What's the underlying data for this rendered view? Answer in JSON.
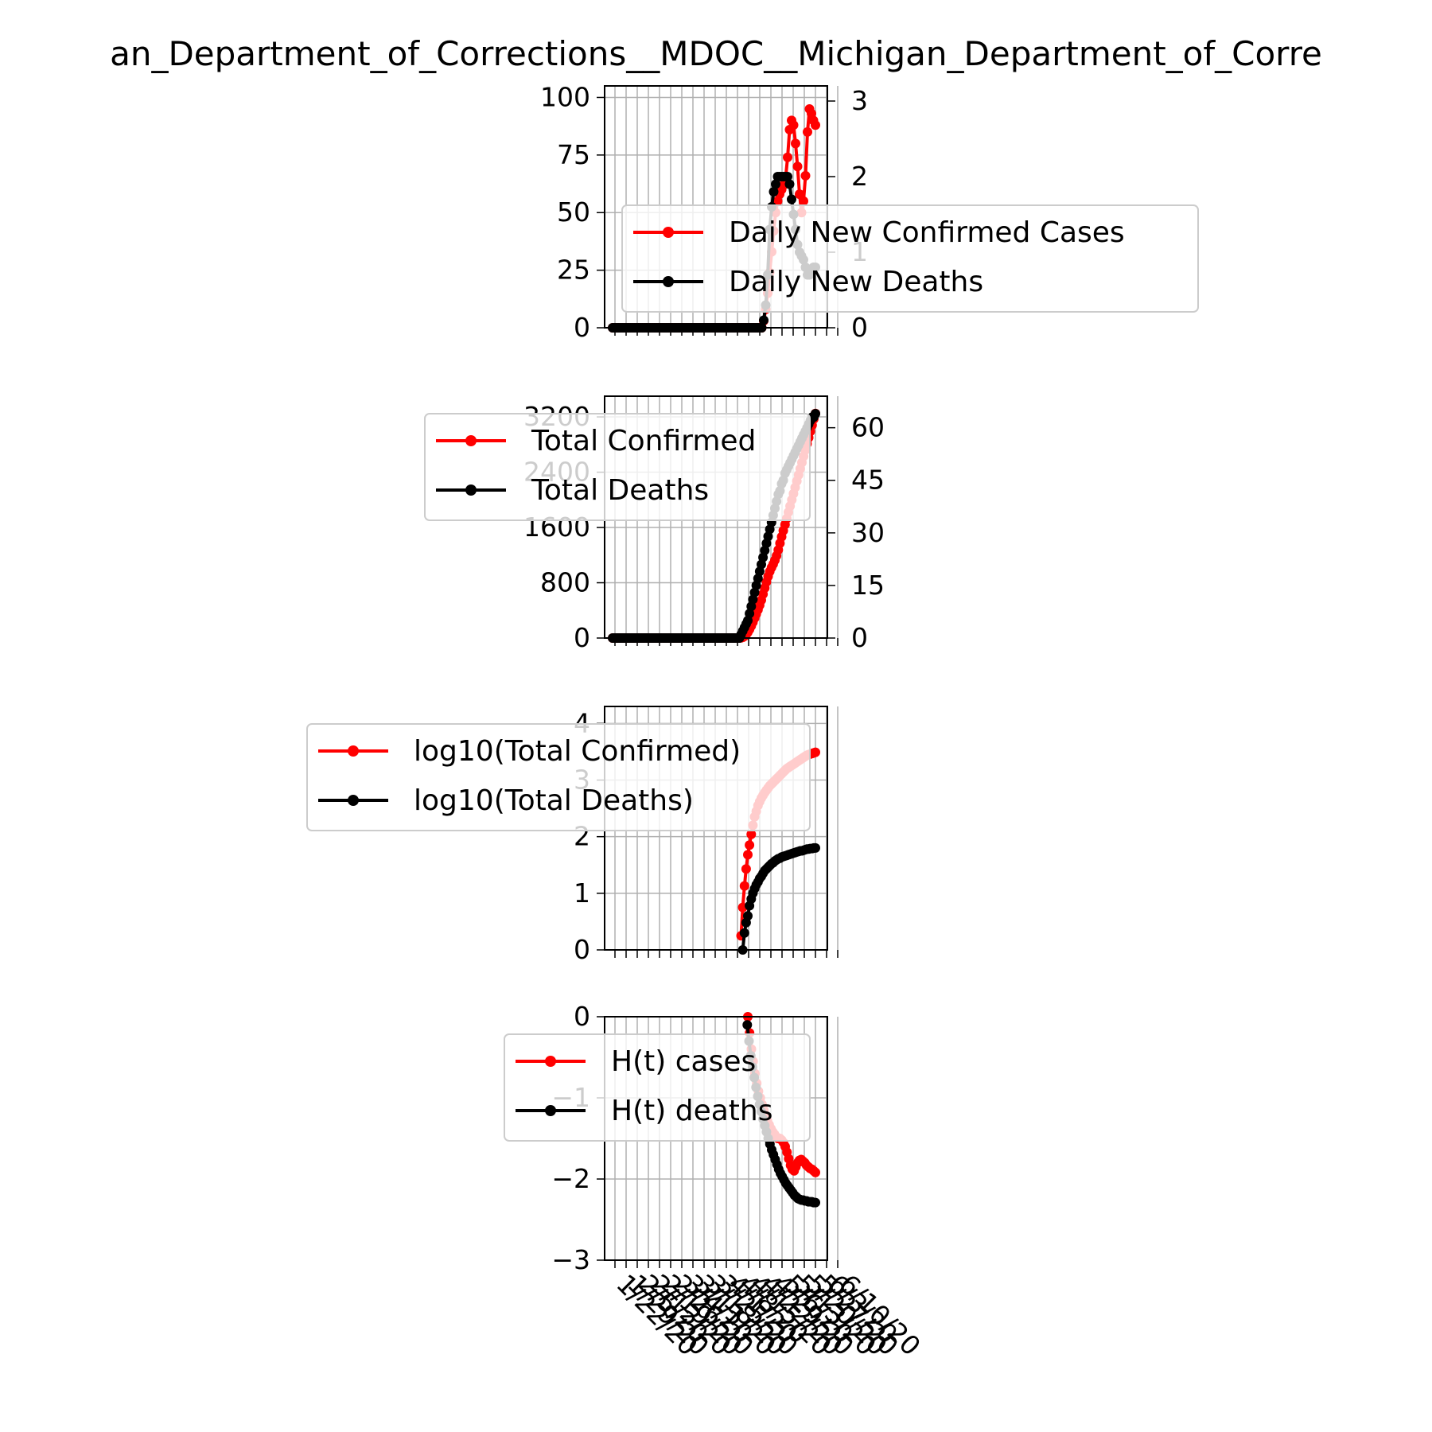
{
  "page_title": "an_Department_of_Corrections__MDOC__Michigan_Department_of_Corre",
  "colors": {
    "cases": "#ff0000",
    "deaths": "#000000",
    "grid": "#b0b0b0",
    "legend_border": "#cccccc"
  },
  "chart_data": [
    {
      "type": "line",
      "title": "an_Department_of_Corrections__MDOC__Michigan_Department_of_Corre",
      "ylim": [
        0,
        105
      ],
      "y_ticks": [
        "0",
        "25",
        "50",
        "75",
        "100"
      ],
      "y2lim": [
        0,
        3.2
      ],
      "y2_ticks": [
        "0",
        "1",
        "2",
        "3"
      ],
      "legend_position": "center-right",
      "grid": true,
      "series": [
        {
          "name": "Daily New Confirmed Cases",
          "axis": "left",
          "color": "#ff0000",
          "values": [
            0,
            0,
            0,
            0,
            0,
            0,
            0,
            0,
            0,
            0,
            0,
            0,
            0,
            0,
            0,
            0,
            0,
            0,
            0,
            0,
            0,
            0,
            0,
            0,
            0,
            0,
            0,
            0,
            0,
            0,
            0,
            0,
            0,
            0,
            0,
            0,
            0,
            0,
            0,
            0,
            0,
            0,
            0,
            0,
            0,
            0,
            0,
            0,
            0,
            0,
            0,
            0,
            0,
            0,
            0,
            0,
            0,
            0,
            0,
            0,
            0,
            0,
            0,
            0,
            0,
            0,
            0,
            0,
            0,
            0,
            0,
            0,
            0,
            0,
            0,
            0,
            3,
            8,
            15,
            24,
            33,
            42,
            50,
            55,
            58,
            60,
            62,
            65,
            74,
            86,
            90,
            88,
            80,
            70,
            58,
            50,
            55,
            66,
            85,
            95,
            93,
            90,
            88
          ]
        },
        {
          "name": "Daily New Deaths",
          "axis": "right",
          "color": "#000000",
          "values": [
            0,
            0,
            0,
            0,
            0,
            0,
            0,
            0,
            0,
            0,
            0,
            0,
            0,
            0,
            0,
            0,
            0,
            0,
            0,
            0,
            0,
            0,
            0,
            0,
            0,
            0,
            0,
            0,
            0,
            0,
            0,
            0,
            0,
            0,
            0,
            0,
            0,
            0,
            0,
            0,
            0,
            0,
            0,
            0,
            0,
            0,
            0,
            0,
            0,
            0,
            0,
            0,
            0,
            0,
            0,
            0,
            0,
            0,
            0,
            0,
            0,
            0,
            0,
            0,
            0,
            0,
            0,
            0,
            0,
            0,
            0,
            0,
            0,
            0,
            0,
            0,
            0.1,
            0.3,
            0.7,
            1.3,
            1.6,
            1.8,
            1.9,
            2.0,
            2.0,
            2.0,
            2.0,
            2.0,
            2.0,
            1.9,
            1.7,
            1.5,
            1.3,
            1.1,
            1.0,
            0.95,
            0.9,
            0.8,
            0.7,
            0.7,
            0.75,
            0.8,
            0.8
          ]
        }
      ]
    },
    {
      "type": "line",
      "ylim": [
        0,
        3500
      ],
      "y_ticks": [
        "0",
        "800",
        "1600",
        "2400",
        "3200"
      ],
      "y2lim": [
        0,
        69
      ],
      "y2_ticks": [
        "0",
        "15",
        "30",
        "45",
        "60"
      ],
      "legend_position": "upper-left",
      "grid": true,
      "series": [
        {
          "name": "Total Confirmed",
          "axis": "left",
          "color": "#ff0000",
          "values": [
            0,
            0,
            0,
            0,
            0,
            0,
            0,
            0,
            0,
            0,
            0,
            0,
            0,
            0,
            0,
            0,
            0,
            0,
            0,
            0,
            0,
            0,
            0,
            0,
            0,
            0,
            0,
            0,
            0,
            0,
            0,
            0,
            0,
            0,
            0,
            0,
            0,
            0,
            0,
            0,
            0,
            0,
            0,
            0,
            0,
            0,
            0,
            0,
            0,
            0,
            0,
            0,
            0,
            0,
            0,
            0,
            0,
            0,
            0,
            0,
            0,
            0,
            0,
            0,
            0,
            0,
            0,
            0,
            0,
            0,
            0,
            0,
            0,
            0,
            0,
            0,
            2,
            10,
            25,
            49,
            82,
            124,
            174,
            229,
            287,
            347,
            409,
            474,
            548,
            634,
            724,
            812,
            892,
            962,
            1020,
            1070,
            1125,
            1191,
            1276,
            1371,
            1464,
            1554,
            1642,
            1730,
            1820,
            1910,
            2000,
            2090,
            2180,
            2270,
            2360,
            2450,
            2540,
            2630,
            2720,
            2810,
            2900,
            2990,
            3080,
            3170,
            3250
          ]
        },
        {
          "name": "Total Deaths",
          "axis": "right",
          "color": "#000000",
          "values": [
            0,
            0,
            0,
            0,
            0,
            0,
            0,
            0,
            0,
            0,
            0,
            0,
            0,
            0,
            0,
            0,
            0,
            0,
            0,
            0,
            0,
            0,
            0,
            0,
            0,
            0,
            0,
            0,
            0,
            0,
            0,
            0,
            0,
            0,
            0,
            0,
            0,
            0,
            0,
            0,
            0,
            0,
            0,
            0,
            0,
            0,
            0,
            0,
            0,
            0,
            0,
            0,
            0,
            0,
            0,
            0,
            0,
            0,
            0,
            0,
            0,
            0,
            0,
            0,
            0,
            0,
            0,
            0,
            0,
            0,
            0,
            0,
            0,
            0,
            0,
            0,
            1,
            2,
            3,
            4,
            5,
            7,
            9,
            11,
            13,
            15,
            17,
            19,
            21,
            23,
            25,
            27,
            29,
            31,
            33,
            35,
            37,
            39,
            41,
            42,
            44,
            45,
            47,
            48,
            49,
            50,
            51,
            52,
            53,
            54,
            55,
            56,
            57,
            58,
            59,
            60,
            61,
            62,
            63,
            63,
            64
          ]
        }
      ]
    },
    {
      "type": "line",
      "ylim": [
        0,
        4.3
      ],
      "y_ticks": [
        "0",
        "1",
        "2",
        "3",
        "4"
      ],
      "legend_position": "upper-left",
      "grid": true,
      "series": [
        {
          "name": "log10(Total Confirmed)",
          "axis": "left",
          "color": "#ff0000",
          "values": [
            null,
            null,
            null,
            null,
            null,
            null,
            null,
            null,
            null,
            null,
            null,
            null,
            null,
            null,
            null,
            null,
            null,
            null,
            null,
            null,
            null,
            null,
            null,
            null,
            null,
            null,
            null,
            null,
            null,
            null,
            null,
            null,
            null,
            null,
            null,
            null,
            null,
            null,
            null,
            null,
            null,
            null,
            null,
            null,
            null,
            null,
            null,
            null,
            null,
            null,
            null,
            null,
            null,
            null,
            null,
            null,
            null,
            null,
            null,
            null,
            null,
            null,
            null,
            null,
            null,
            null,
            null,
            null,
            null,
            null,
            null,
            null,
            null,
            null,
            null,
            null,
            0.25,
            0.75,
            1.13,
            1.43,
            1.68,
            1.85,
            2.04,
            2.2,
            2.35,
            2.45,
            2.55,
            2.62,
            2.68,
            2.73,
            2.78,
            2.82,
            2.86,
            2.9,
            2.93,
            2.96,
            2.99,
            3.02,
            3.05,
            3.08,
            3.11,
            3.14,
            3.17,
            3.2,
            3.22,
            3.24,
            3.26,
            3.28,
            3.3,
            3.32,
            3.34,
            3.36,
            3.38,
            3.4,
            3.42,
            3.44,
            3.45,
            3.46,
            3.47,
            3.48,
            3.49
          ]
        },
        {
          "name": "log10(Total Deaths)",
          "axis": "left",
          "color": "#000000",
          "values": [
            null,
            null,
            null,
            null,
            null,
            null,
            null,
            null,
            null,
            null,
            null,
            null,
            null,
            null,
            null,
            null,
            null,
            null,
            null,
            null,
            null,
            null,
            null,
            null,
            null,
            null,
            null,
            null,
            null,
            null,
            null,
            null,
            null,
            null,
            null,
            null,
            null,
            null,
            null,
            null,
            null,
            null,
            null,
            null,
            null,
            null,
            null,
            null,
            null,
            null,
            null,
            null,
            null,
            null,
            null,
            null,
            null,
            null,
            null,
            null,
            null,
            null,
            null,
            null,
            null,
            null,
            null,
            null,
            null,
            null,
            null,
            null,
            null,
            null,
            null,
            null,
            null,
            0.0,
            0.3,
            0.48,
            0.6,
            0.78,
            0.9,
            1.0,
            1.08,
            1.15,
            1.2,
            1.26,
            1.3,
            1.35,
            1.4,
            1.43,
            1.46,
            1.49,
            1.52,
            1.54,
            1.57,
            1.59,
            1.61,
            1.62,
            1.64,
            1.65,
            1.66,
            1.67,
            1.68,
            1.69,
            1.7,
            1.71,
            1.72,
            1.73,
            1.74,
            1.75,
            1.75,
            1.76,
            1.77,
            1.78,
            1.78,
            1.79,
            1.79,
            1.8,
            1.8
          ]
        }
      ]
    },
    {
      "type": "line",
      "ylim": [
        -3,
        0
      ],
      "y_ticks": [
        "−3",
        "−2",
        "−1",
        "0"
      ],
      "legend_position": "upper-left",
      "grid": true,
      "x_tick_labels": [
        "1/22/20",
        "1/29/20",
        "2/5/20",
        "2/12/20",
        "2/19/20",
        "2/26/20",
        "3/4/20",
        "3/11/20",
        "3/18/20",
        "3/25/20",
        "4/1/20",
        "4/8/20",
        "4/15/20",
        "4/22/20",
        "4/29/20",
        "5/6/20",
        "5/13/20",
        "5/20/20",
        "5/27/20",
        "6/3/20",
        "6/10/20"
      ],
      "series": [
        {
          "name": "H(t) cases",
          "axis": "left",
          "color": "#ff0000",
          "values": [
            null,
            null,
            null,
            null,
            null,
            null,
            null,
            null,
            null,
            null,
            null,
            null,
            null,
            null,
            null,
            null,
            null,
            null,
            null,
            null,
            null,
            null,
            null,
            null,
            null,
            null,
            null,
            null,
            null,
            null,
            null,
            null,
            null,
            null,
            null,
            null,
            null,
            null,
            null,
            null,
            null,
            null,
            null,
            null,
            null,
            null,
            null,
            null,
            null,
            null,
            null,
            null,
            null,
            null,
            null,
            null,
            null,
            null,
            null,
            null,
            null,
            null,
            null,
            null,
            null,
            null,
            null,
            null,
            null,
            null,
            null,
            null,
            null,
            null,
            null,
            null,
            0.0,
            -0.2,
            -0.4,
            -0.55,
            -0.7,
            -0.82,
            -0.92,
            -1.0,
            -1.08,
            -1.15,
            -1.22,
            -1.28,
            -1.33,
            -1.38,
            -1.42,
            -1.45,
            -1.48,
            -1.5,
            -1.5,
            -1.52,
            -1.55,
            -1.6,
            -1.67,
            -1.75,
            -1.83,
            -1.88,
            -1.9,
            -1.85,
            -1.8,
            -1.77,
            -1.76,
            -1.78,
            -1.8,
            -1.83,
            -1.85,
            -1.87,
            -1.88,
            -1.9,
            -1.92
          ]
        },
        {
          "name": "H(t) deaths",
          "axis": "left",
          "color": "#000000",
          "values": [
            null,
            null,
            null,
            null,
            null,
            null,
            null,
            null,
            null,
            null,
            null,
            null,
            null,
            null,
            null,
            null,
            null,
            null,
            null,
            null,
            null,
            null,
            null,
            null,
            null,
            null,
            null,
            null,
            null,
            null,
            null,
            null,
            null,
            null,
            null,
            null,
            null,
            null,
            null,
            null,
            null,
            null,
            null,
            null,
            null,
            null,
            null,
            null,
            null,
            null,
            null,
            null,
            null,
            null,
            null,
            null,
            null,
            null,
            null,
            null,
            null,
            null,
            null,
            null,
            null,
            null,
            null,
            null,
            null,
            null,
            null,
            null,
            null,
            null,
            null,
            null,
            null,
            -0.1,
            -0.3,
            -0.48,
            -0.62,
            -0.75,
            -0.87,
            -0.98,
            -1.08,
            -1.17,
            -1.26,
            -1.34,
            -1.42,
            -1.5,
            -1.57,
            -1.64,
            -1.7,
            -1.76,
            -1.82,
            -1.88,
            -1.93,
            -1.97,
            -2.01,
            -2.05,
            -2.08,
            -2.11,
            -2.14,
            -2.17,
            -2.2,
            -2.22,
            -2.24,
            -2.25,
            -2.26,
            -2.26,
            -2.27,
            -2.27,
            -2.28,
            -2.28,
            -2.28,
            -2.29,
            -2.29
          ]
        }
      ]
    }
  ]
}
